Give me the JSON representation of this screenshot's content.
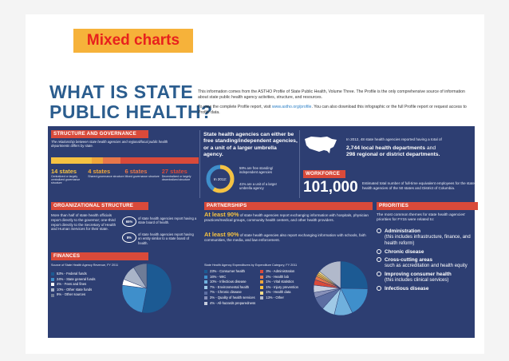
{
  "slide_label": "Mixed charts",
  "title": {
    "line1": "WHAT IS STATE",
    "line2": "PUBLIC HEALTH?"
  },
  "intro": {
    "p1": "This information comes from the ASTHO Profile of State Public Health, Volume Three. The Profile is the only comprehensive source of information about state public health agency activities, structure, and resources.",
    "p2a": "To view the complete Profile report, visit ",
    "p2_link": "www.astho.org/profile",
    "p2b": ". You can also download this infographic or the full Profile report or request access to Profile data."
  },
  "structure": {
    "header": "STRUCTURE AND GOVERNANCE",
    "note": "The relationship between state health agencies and regional/local public health departments differs by state.",
    "stats": [
      {
        "num": "14 states",
        "label": "Centralized or largely centralized governance structure",
        "color": "#f5c242"
      },
      {
        "num": "4 states",
        "label": "Shared governance structure",
        "color": "#f0a63a"
      },
      {
        "num": "6 states",
        "label": "Mixed governance structure",
        "color": "#e7774a"
      },
      {
        "num": "27 states",
        "label": "Decentralized or largely decentralized structure",
        "color": "#d94a3a"
      }
    ],
    "agency_text": "State health agencies can either be free standing/independent agencies, or a unit of a larger umbrella agency.",
    "circle_label": "In 2012:",
    "pct_free": "59% are free standing/ independent agencies",
    "pct_umbrella": "41% are a unit of a larger umbrella agency"
  },
  "workforce": {
    "header": "WORKFORCE",
    "map_text_a": "In 2012, 48 state health agencies reported having a total of",
    "local": "2,744 local health departments",
    "and": " and",
    "regional": "298 regional or district departments.",
    "number": "101,000",
    "desc": "Estimated total number of full-time equivalent employees for the state health agencies of the 50 states and District of Columbia."
  },
  "org": {
    "header": "ORGANIZATIONAL STRUCTURE",
    "text": "More than half of state health officials report directly to the governor; one-third report directly to the Secretary of Health and Human Services for their state.",
    "p1_pct": "65%",
    "p1_text": "of state health agencies report having a state board of health.",
    "p2_pct": "8%",
    "p2_text": "of state health agencies report having an entity similar to a state board of health."
  },
  "partnerships": {
    "header": "PARTNERSHIPS",
    "l1_big": "At least 90%",
    "l1_text": " of state health agencies report exchanging information with hospitals, physician practices/medical groups, community health centers, and other health providers.",
    "l2_big": "At least 90%",
    "l2_text": " of state health agencies also report exchanging information with schools, faith communities, the media, and law enforcement."
  },
  "priorities": {
    "header": "PRIORITIES",
    "intro": "The most common themes for state health agencies' priorities for FY15 were related to:",
    "items": [
      {
        "title": "Administration",
        "sub": "(this includes infrastructure, finance, and health reform)"
      },
      {
        "title": "Chronic disease",
        "sub": ""
      },
      {
        "title": "Cross-cutting areas",
        "sub": "such as accreditation and health equity"
      },
      {
        "title": "Improving consumer health",
        "sub": "(this includes clinical services)"
      },
      {
        "title": "Infectious disease",
        "sub": ""
      }
    ]
  },
  "finances": {
    "header": "FINANCES"
  },
  "chart_data": [
    {
      "type": "pie",
      "title": "Source of State Health Agency Revenue, FY 2011",
      "labels": [
        "Federal funds",
        "State general funds",
        "Fees and fines",
        "Other state funds",
        "Other sources"
      ],
      "values": [
        53,
        24,
        4,
        10,
        9
      ],
      "value_labels": [
        "53%",
        "24%",
        "4%",
        "10%",
        "9%"
      ],
      "colors": [
        "#1c5a93",
        "#3f8fcb",
        "#ffffff",
        "#a9b4c8",
        "#6f7c97"
      ]
    },
    {
      "type": "pie",
      "title": "State Health Agency Expenditures by Expenditure Category, FY 2011",
      "labels": [
        "Consumer health",
        "WIC",
        "Infectious disease",
        "Environmental health",
        "Chronic disease",
        "Quality of health services",
        "All-hazards preparedness",
        "Administration",
        "Health lab",
        "Vital statistics",
        "Injury prevention",
        "Health data",
        "Other"
      ],
      "values": [
        23,
        16,
        10,
        7,
        7,
        3,
        4,
        3,
        2,
        1,
        1,
        1,
        13
      ],
      "value_labels": [
        "23%",
        "16%",
        "10%",
        "7%",
        "7%",
        "3%",
        "4%",
        "3%",
        "2%",
        "1%",
        "1%",
        "1%",
        "13%"
      ],
      "colors": [
        "#1c5a93",
        "#3f8fcb",
        "#6fb0dd",
        "#9fc9e6",
        "#5c6ea2",
        "#8790b8",
        "#c7cede",
        "#d94a3a",
        "#e7774a",
        "#f0a63a",
        "#f5c242",
        "#f8dd8a",
        "#b1b9cb"
      ]
    }
  ]
}
